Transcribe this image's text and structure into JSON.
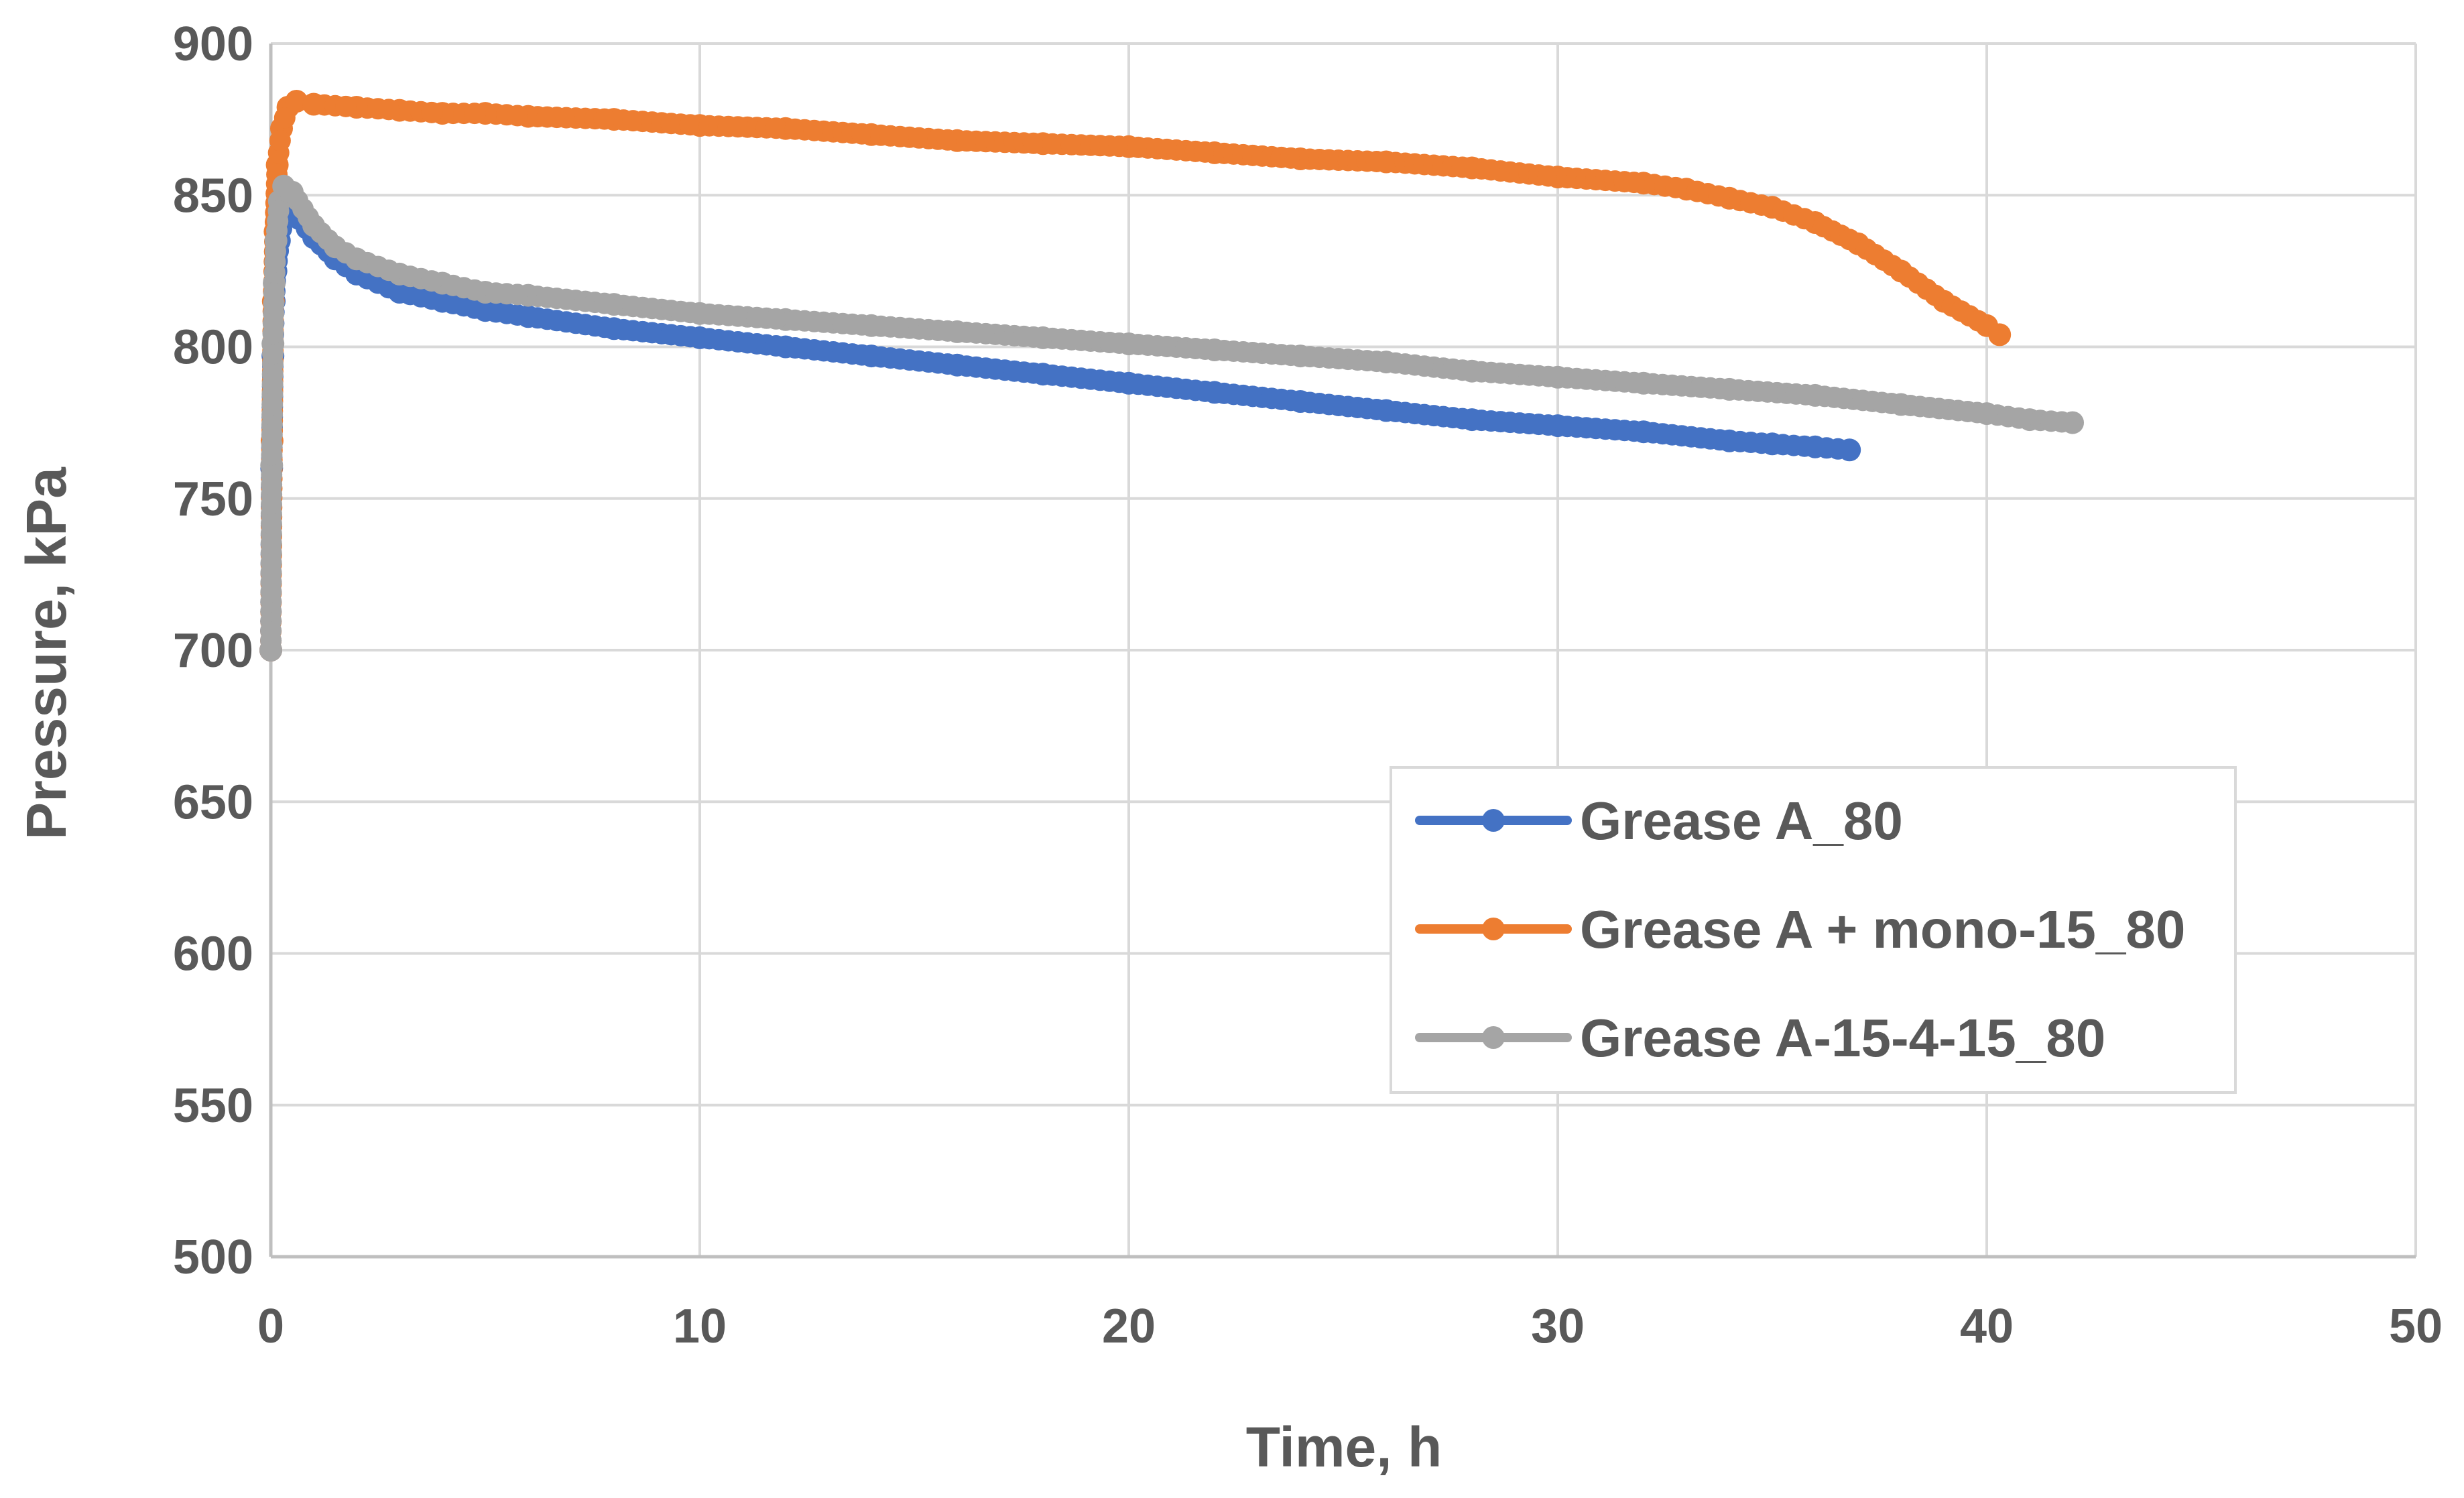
{
  "chart_data": {
    "type": "line",
    "title": "",
    "xlabel": "Time, h",
    "ylabel": "Pressure, kPa",
    "xlim": [
      0,
      50
    ],
    "ylim": [
      500,
      900
    ],
    "xticks": [
      0,
      10,
      20,
      30,
      40,
      50
    ],
    "yticks": [
      500,
      550,
      600,
      650,
      700,
      750,
      800,
      850,
      900
    ],
    "grid": true,
    "legend_position": "bottom-right",
    "series": [
      {
        "name": "Grease A_80",
        "color": "#4472c4",
        "x": [
          0,
          0.02,
          0.05,
          0.08,
          0.12,
          0.2,
          0.3,
          0.5,
          1,
          1.5,
          2,
          3,
          4,
          5,
          6,
          8,
          10,
          12,
          14,
          16,
          18,
          20,
          22,
          24,
          26,
          28,
          30,
          32,
          34,
          35,
          36,
          36.8
        ],
        "y": [
          700,
          760,
          797,
          815,
          825,
          835,
          843,
          845,
          836,
          829,
          824,
          818,
          815,
          812,
          810,
          806,
          803,
          800,
          797,
          794,
          791,
          788,
          785,
          782,
          779,
          776,
          774,
          772,
          769,
          768,
          767,
          766
        ]
      },
      {
        "name": "Grease A + mono-15_80",
        "color": "#ed7d31",
        "x": [
          0,
          0.03,
          0.06,
          0.1,
          0.15,
          0.25,
          0.4,
          0.6,
          1,
          2,
          3,
          4,
          5,
          6,
          8,
          10,
          12,
          14,
          16,
          18,
          20,
          22,
          24,
          26,
          28,
          30,
          32,
          33,
          34,
          35,
          36,
          37,
          38,
          39,
          40,
          40.3
        ],
        "y": [
          700,
          769,
          815,
          838,
          860,
          872,
          879,
          881,
          880,
          879,
          878,
          877,
          877,
          876,
          875,
          873,
          872,
          870,
          868,
          867,
          866,
          864,
          862,
          861,
          859,
          856,
          854,
          852,
          849,
          846,
          841,
          834,
          825,
          815,
          807,
          804
        ]
      },
      {
        "name": "Grease A-15-4-15_80",
        "color": "#a5a5a5",
        "x": [
          0,
          0.02,
          0.05,
          0.08,
          0.12,
          0.2,
          0.3,
          0.5,
          1,
          1.5,
          2,
          3,
          4,
          5,
          6,
          8,
          10,
          12,
          14,
          16,
          18,
          20,
          22,
          24,
          26,
          28,
          30,
          32,
          34,
          36,
          38,
          40,
          41,
          42
        ],
        "y": [
          700,
          761,
          801,
          821,
          835,
          848,
          853,
          851,
          840,
          833,
          829,
          824,
          821,
          818,
          817,
          814,
          811,
          809,
          807,
          805,
          803,
          801,
          799,
          797,
          795,
          792,
          790,
          788,
          786,
          784,
          781,
          778,
          776,
          775
        ]
      }
    ]
  }
}
